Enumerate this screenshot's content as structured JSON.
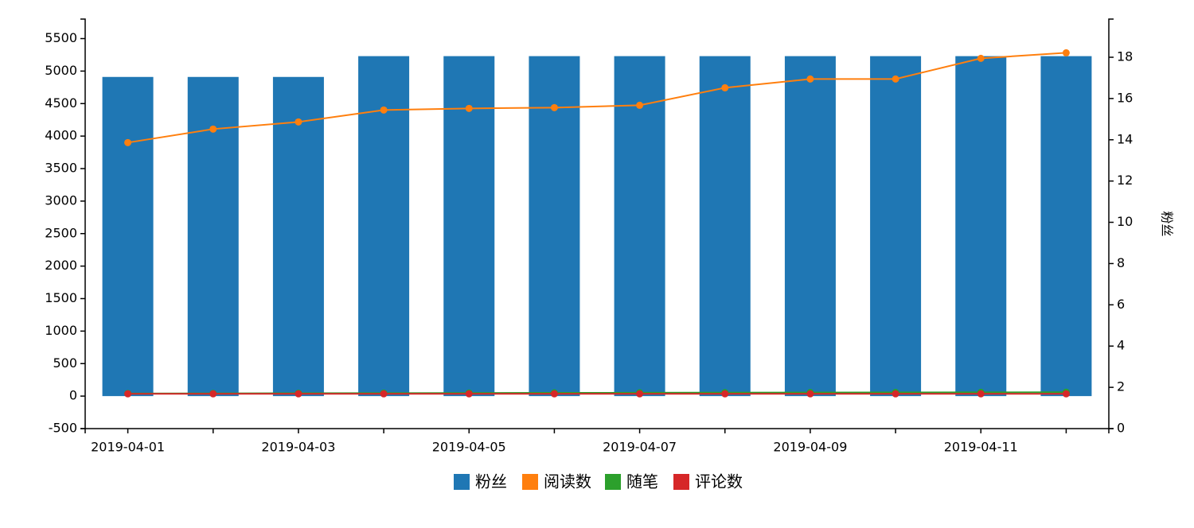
{
  "chart_data": {
    "type": "bar",
    "categories": [
      "2019-04-01",
      null,
      "2019-04-03",
      null,
      "2019-04-05",
      null,
      "2019-04-07",
      null,
      "2019-04-09",
      null,
      "2019-04-11",
      null
    ],
    "series": [
      {
        "name": "粉丝",
        "color": "#1f77b4",
        "type": "bar",
        "values": [
          4910,
          4910,
          4910,
          5230,
          5230,
          5230,
          5230,
          5230,
          5230,
          5230,
          5230,
          5230
        ]
      },
      {
        "name": "阅读数",
        "color": "#ff7f0e",
        "type": "line",
        "values": [
          3900,
          4108,
          4218,
          4401,
          4426,
          4438,
          4474,
          4743,
          4878,
          4878,
          5196,
          5281
        ]
      },
      {
        "name": "随笔",
        "color": "#2ca02c",
        "type": "line",
        "values": [
          40,
          42,
          44,
          46,
          48,
          50,
          52,
          54,
          55,
          56,
          58,
          60
        ]
      },
      {
        "name": "评论数",
        "color": "#d62728",
        "type": "line",
        "values": [
          35,
          35,
          35,
          35,
          35,
          35,
          35,
          35,
          35,
          35,
          35,
          35
        ]
      }
    ],
    "ylim": [
      -500,
      5800
    ],
    "yticks": [
      -500,
      0,
      500,
      1000,
      1500,
      2000,
      2500,
      3000,
      3500,
      4000,
      4500,
      5000,
      5500
    ],
    "y2lim": [
      0,
      19.85
    ],
    "y2ticks": [
      0,
      2,
      4,
      6,
      8,
      10,
      12,
      14,
      16,
      18
    ],
    "y2label": "粉丝",
    "legend": "bottom"
  }
}
